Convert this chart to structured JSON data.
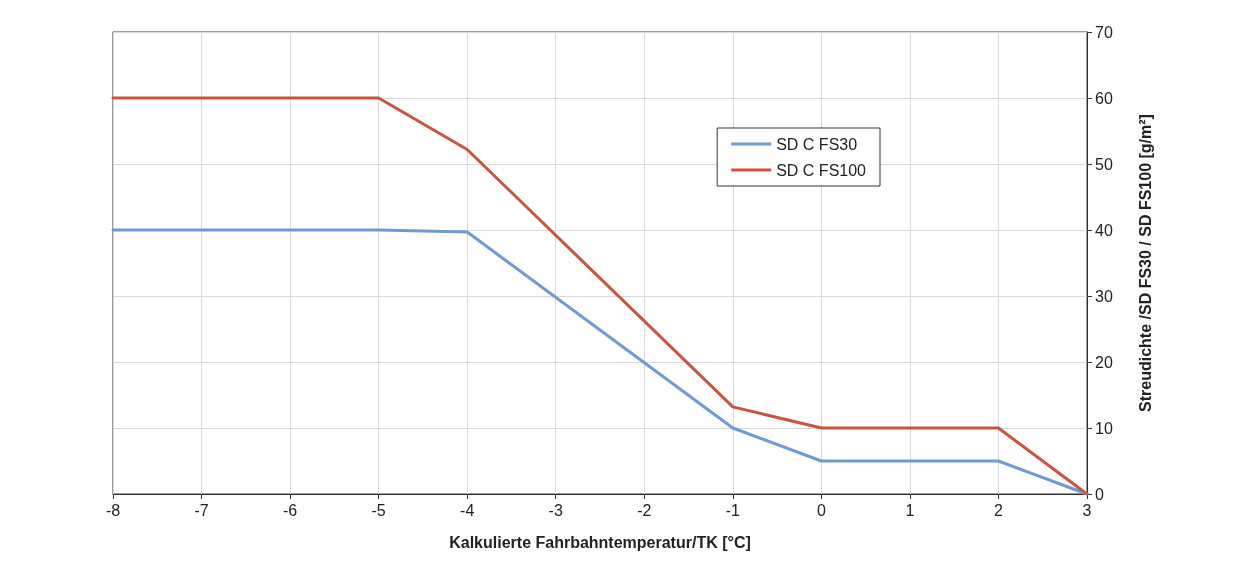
{
  "chart_data": {
    "type": "line",
    "xlabel": "Kalkulierte Fahrbahntemperatur/TK [°C]",
    "ylabel": "Streudichte /SD FS30 / SD FS100 [g/m²]",
    "x": [
      -8,
      -5,
      -4,
      -1,
      0,
      2,
      3
    ],
    "series": [
      {
        "name": "SD C FS30",
        "color": "#6f9bd4",
        "values": [
          40,
          40,
          39.7,
          10,
          5,
          5,
          0
        ]
      },
      {
        "name": "SD C FS100",
        "color": "#c8553d",
        "values": [
          60,
          60,
          52.2,
          13.2,
          10,
          10,
          0
        ]
      }
    ],
    "xlim": [
      -8,
      3
    ],
    "xticks": [
      -8,
      -7,
      -6,
      -5,
      -4,
      -3,
      -2,
      -1,
      0,
      1,
      2,
      3
    ],
    "ylim": [
      0,
      70
    ],
    "yticks": [
      0,
      10,
      20,
      30,
      40,
      50,
      60,
      70
    ],
    "grid": true,
    "legend": "top right",
    "marker": "none",
    "line_style": "solid"
  }
}
